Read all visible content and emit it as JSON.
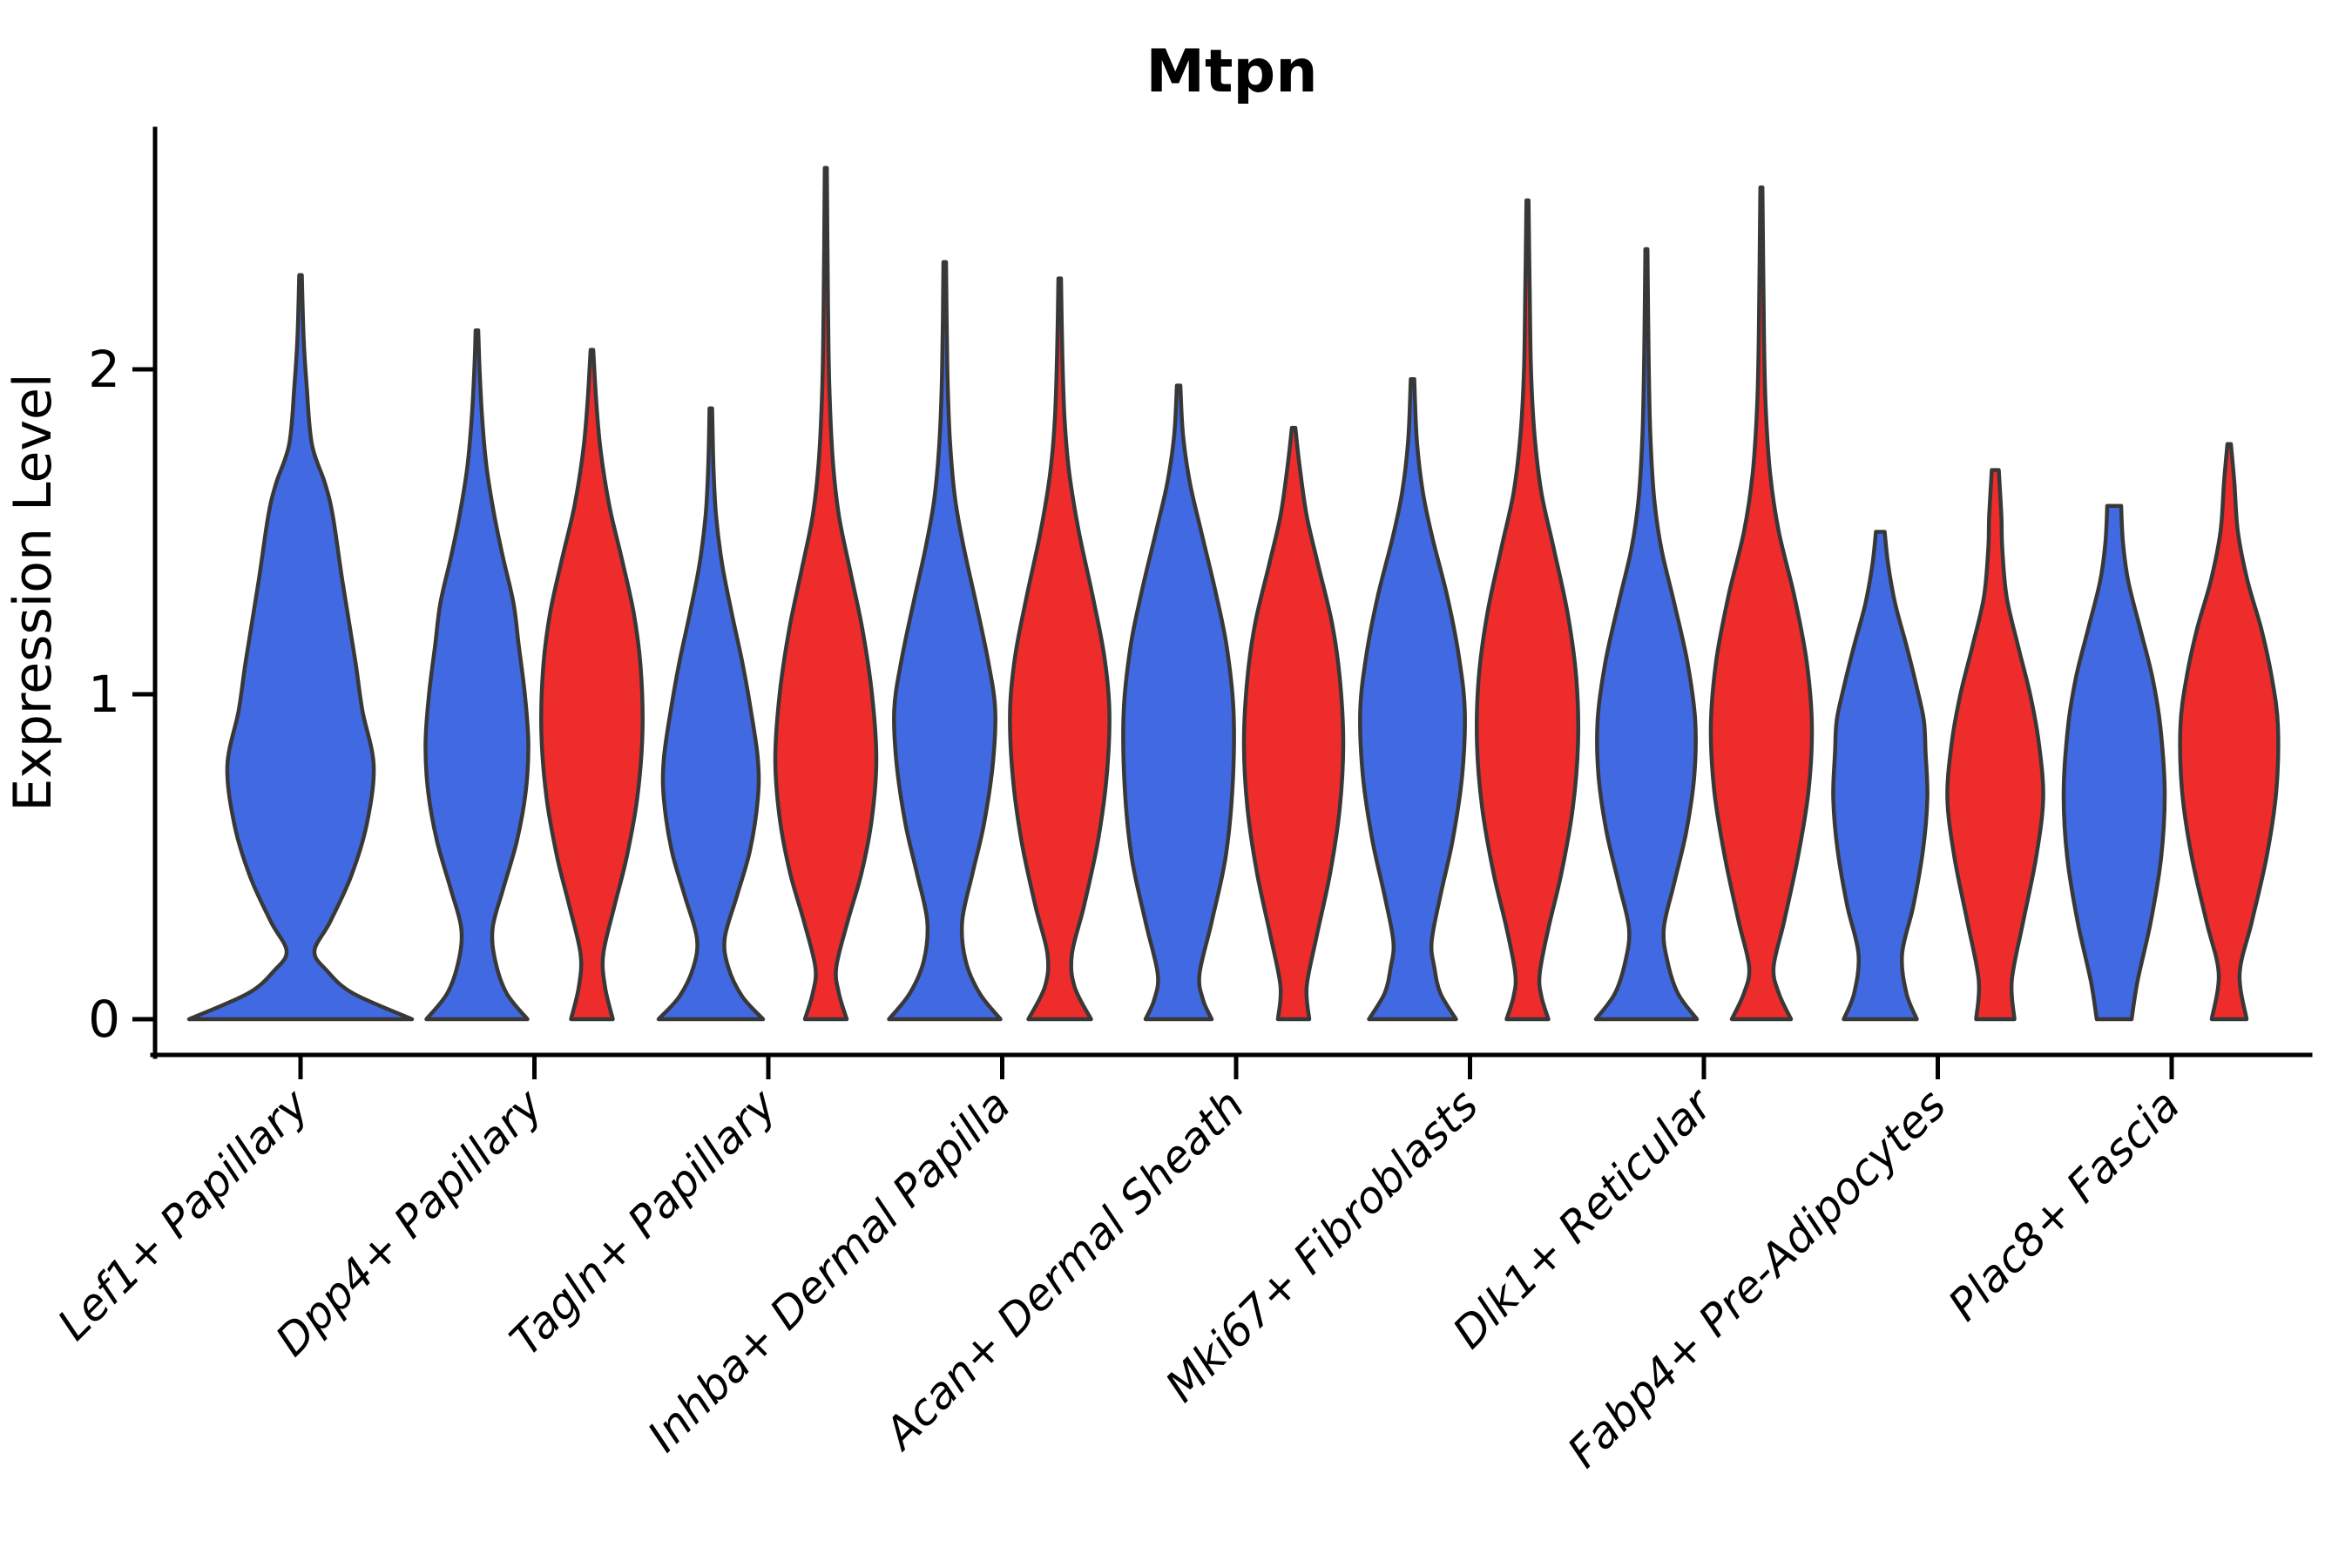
{
  "title": "Mtpn",
  "axis": {
    "ylabel": "Expression Level",
    "ytick_labels": [
      "0",
      "1",
      "2"
    ]
  },
  "colors": {
    "blue_fill": "#4169E1",
    "red_fill": "#EE2C2C",
    "violin_outline": "#383838",
    "axis_color": "#000000",
    "background": "#ffffff"
  },
  "chart_data": {
    "type": "violin",
    "title": "Mtpn",
    "xlabel": "",
    "ylabel": "Expression Level",
    "yticks": [
      0,
      1,
      2
    ],
    "ytick_labels": [
      "0",
      "1",
      "2"
    ],
    "ylim": [
      -0.12,
      2.75
    ],
    "grid": false,
    "legend": "none",
    "categories": [
      "Lef1+ Papillary",
      "Dpp4+ Papillary",
      "Tagln+ Papillary",
      "Inhba+ Dermal Papilla",
      "Acan+ Dermal Sheath",
      "Mki67+ Fibroblasts",
      "Dlk1+ Reticular",
      "Fabp4+ Pre-Adipocytes",
      "Plac8+ Fascia"
    ],
    "series": [
      {
        "name": "blue",
        "color": "#4169E1"
      },
      {
        "name": "red",
        "color": "#EE2C2C"
      }
    ],
    "violins": [
      {
        "category_index": 0,
        "series": "blue",
        "single": true,
        "max_expression": 2.29,
        "profile": [
          [
            0,
            128
          ],
          [
            0.08,
            60
          ],
          [
            0.15,
            30
          ],
          [
            0.21,
            16
          ],
          [
            0.3,
            34
          ],
          [
            0.44,
            58
          ],
          [
            0.6,
            76
          ],
          [
            0.78,
            84
          ],
          [
            0.95,
            71
          ],
          [
            1.1,
            63
          ],
          [
            1.35,
            48
          ],
          [
            1.55,
            37
          ],
          [
            1.65,
            28
          ],
          [
            1.77,
            13
          ],
          [
            1.95,
            7
          ],
          [
            2.1,
            3.5
          ],
          [
            2.29,
            1.5
          ]
        ]
      },
      {
        "category_index": 1,
        "series": "blue",
        "single": false,
        "max_expression": 2.12,
        "profile": [
          [
            0,
            58
          ],
          [
            0.08,
            34
          ],
          [
            0.18,
            21
          ],
          [
            0.28,
            18
          ],
          [
            0.4,
            30
          ],
          [
            0.55,
            46
          ],
          [
            0.7,
            56
          ],
          [
            0.85,
            59
          ],
          [
            1.0,
            55
          ],
          [
            1.15,
            48
          ],
          [
            1.28,
            42
          ],
          [
            1.42,
            30
          ],
          [
            1.55,
            20
          ],
          [
            1.7,
            11
          ],
          [
            1.85,
            6
          ],
          [
            2.0,
            3
          ],
          [
            2.12,
            1.5
          ]
        ]
      },
      {
        "category_index": 1,
        "series": "red",
        "single": false,
        "max_expression": 2.06,
        "profile": [
          [
            0,
            24
          ],
          [
            0.1,
            15
          ],
          [
            0.2,
            13
          ],
          [
            0.35,
            26
          ],
          [
            0.5,
            40
          ],
          [
            0.68,
            52
          ],
          [
            0.88,
            58
          ],
          [
            1.08,
            56
          ],
          [
            1.25,
            48
          ],
          [
            1.42,
            34
          ],
          [
            1.58,
            20
          ],
          [
            1.75,
            10
          ],
          [
            1.9,
            5
          ],
          [
            2.06,
            1.5
          ]
        ]
      },
      {
        "category_index": 2,
        "series": "blue",
        "single": false,
        "max_expression": 1.88,
        "profile": [
          [
            0,
            60
          ],
          [
            0.07,
            36
          ],
          [
            0.16,
            20
          ],
          [
            0.25,
            16
          ],
          [
            0.38,
            30
          ],
          [
            0.52,
            45
          ],
          [
            0.68,
            54
          ],
          [
            0.8,
            54
          ],
          [
            0.95,
            46
          ],
          [
            1.1,
            36
          ],
          [
            1.25,
            24
          ],
          [
            1.4,
            13
          ],
          [
            1.55,
            6
          ],
          [
            1.7,
            3
          ],
          [
            1.88,
            1.5
          ]
        ]
      },
      {
        "category_index": 2,
        "series": "red",
        "single": false,
        "max_expression": 2.62,
        "profile": [
          [
            0,
            24
          ],
          [
            0.08,
            15
          ],
          [
            0.16,
            12
          ],
          [
            0.3,
            25
          ],
          [
            0.45,
            41
          ],
          [
            0.62,
            53
          ],
          [
            0.8,
            58
          ],
          [
            1.0,
            53
          ],
          [
            1.2,
            42
          ],
          [
            1.38,
            28
          ],
          [
            1.55,
            15
          ],
          [
            1.72,
            8
          ],
          [
            1.95,
            4
          ],
          [
            2.2,
            2.5
          ],
          [
            2.62,
            1.2
          ]
        ]
      },
      {
        "category_index": 3,
        "series": "blue",
        "single": false,
        "max_expression": 2.33,
        "profile": [
          [
            0,
            64
          ],
          [
            0.08,
            40
          ],
          [
            0.18,
            24
          ],
          [
            0.3,
            20
          ],
          [
            0.45,
            32
          ],
          [
            0.6,
            45
          ],
          [
            0.78,
            55
          ],
          [
            0.95,
            58
          ],
          [
            1.1,
            50
          ],
          [
            1.28,
            36
          ],
          [
            1.45,
            22
          ],
          [
            1.6,
            12
          ],
          [
            1.78,
            6
          ],
          [
            2.0,
            3
          ],
          [
            2.33,
            1.5
          ]
        ]
      },
      {
        "category_index": 3,
        "series": "red",
        "single": false,
        "max_expression": 2.28,
        "profile": [
          [
            0,
            36
          ],
          [
            0.1,
            17
          ],
          [
            0.2,
            14
          ],
          [
            0.35,
            28
          ],
          [
            0.55,
            44
          ],
          [
            0.75,
            54
          ],
          [
            0.95,
            57
          ],
          [
            1.12,
            51
          ],
          [
            1.3,
            38
          ],
          [
            1.5,
            22
          ],
          [
            1.68,
            11
          ],
          [
            1.85,
            5.5
          ],
          [
            2.05,
            3
          ],
          [
            2.28,
            1.5
          ]
        ]
      },
      {
        "category_index": 4,
        "series": "blue",
        "single": false,
        "max_expression": 1.95,
        "profile": [
          [
            0,
            38
          ],
          [
            0.06,
            28
          ],
          [
            0.14,
            24
          ],
          [
            0.3,
            38
          ],
          [
            0.5,
            54
          ],
          [
            0.72,
            62
          ],
          [
            0.95,
            63
          ],
          [
            1.15,
            55
          ],
          [
            1.32,
            42
          ],
          [
            1.5,
            26
          ],
          [
            1.65,
            13
          ],
          [
            1.8,
            5
          ],
          [
            1.95,
            2
          ]
        ]
      },
      {
        "category_index": 4,
        "series": "red",
        "single": false,
        "max_expression": 1.82,
        "profile": [
          [
            0,
            18
          ],
          [
            0.1,
            15
          ],
          [
            0.25,
            26
          ],
          [
            0.45,
            42
          ],
          [
            0.65,
            53
          ],
          [
            0.85,
            57
          ],
          [
            1.05,
            53
          ],
          [
            1.22,
            44
          ],
          [
            1.4,
            28
          ],
          [
            1.55,
            15
          ],
          [
            1.7,
            7
          ],
          [
            1.82,
            2
          ]
        ]
      },
      {
        "category_index": 5,
        "series": "blue",
        "single": false,
        "max_expression": 1.97,
        "profile": [
          [
            0,
            50
          ],
          [
            0.08,
            32
          ],
          [
            0.16,
            25
          ],
          [
            0.24,
            22
          ],
          [
            0.38,
            32
          ],
          [
            0.55,
            46
          ],
          [
            0.75,
            57
          ],
          [
            0.95,
            60
          ],
          [
            1.12,
            53
          ],
          [
            1.3,
            40
          ],
          [
            1.48,
            23
          ],
          [
            1.62,
            12
          ],
          [
            1.78,
            5
          ],
          [
            1.97,
            2
          ]
        ]
      },
      {
        "category_index": 5,
        "series": "red",
        "single": false,
        "max_expression": 2.52,
        "profile": [
          [
            0,
            24
          ],
          [
            0.07,
            16
          ],
          [
            0.14,
            14
          ],
          [
            0.28,
            24
          ],
          [
            0.45,
            39
          ],
          [
            0.65,
            52
          ],
          [
            0.85,
            58
          ],
          [
            1.05,
            56
          ],
          [
            1.25,
            46
          ],
          [
            1.45,
            30
          ],
          [
            1.62,
            16
          ],
          [
            1.8,
            8
          ],
          [
            2.0,
            4
          ],
          [
            2.25,
            2.5
          ],
          [
            2.52,
            1.2
          ]
        ]
      },
      {
        "category_index": 6,
        "series": "blue",
        "single": false,
        "max_expression": 2.37,
        "profile": [
          [
            0,
            58
          ],
          [
            0.08,
            36
          ],
          [
            0.18,
            24
          ],
          [
            0.28,
            20
          ],
          [
            0.42,
            32
          ],
          [
            0.58,
            46
          ],
          [
            0.75,
            55
          ],
          [
            0.92,
            56
          ],
          [
            1.1,
            47
          ],
          [
            1.28,
            32
          ],
          [
            1.45,
            17
          ],
          [
            1.6,
            9
          ],
          [
            1.8,
            4.5
          ],
          [
            2.05,
            2.5
          ],
          [
            2.37,
            1.2
          ]
        ]
      },
      {
        "category_index": 6,
        "series": "red",
        "single": false,
        "max_expression": 2.56,
        "profile": [
          [
            0,
            34
          ],
          [
            0.08,
            20
          ],
          [
            0.16,
            14
          ],
          [
            0.3,
            26
          ],
          [
            0.5,
            42
          ],
          [
            0.7,
            54
          ],
          [
            0.9,
            58
          ],
          [
            1.1,
            52
          ],
          [
            1.3,
            38
          ],
          [
            1.5,
            20
          ],
          [
            1.68,
            10
          ],
          [
            1.88,
            5
          ],
          [
            2.1,
            3
          ],
          [
            2.56,
            1.2
          ]
        ]
      },
      {
        "category_index": 7,
        "series": "blue",
        "single": false,
        "max_expression": 1.5,
        "profile": [
          [
            0,
            42
          ],
          [
            0.08,
            30
          ],
          [
            0.2,
            25
          ],
          [
            0.35,
            38
          ],
          [
            0.52,
            49
          ],
          [
            0.68,
            54
          ],
          [
            0.82,
            52
          ],
          [
            0.92,
            50
          ],
          [
            1.02,
            42
          ],
          [
            1.15,
            30
          ],
          [
            1.28,
            17
          ],
          [
            1.4,
            9
          ],
          [
            1.5,
            5
          ]
        ]
      },
      {
        "category_index": 7,
        "series": "red",
        "single": false,
        "max_expression": 1.69,
        "profile": [
          [
            0,
            22
          ],
          [
            0.12,
            19
          ],
          [
            0.3,
            32
          ],
          [
            0.5,
            47
          ],
          [
            0.68,
            55
          ],
          [
            0.85,
            50
          ],
          [
            1.0,
            40
          ],
          [
            1.15,
            26
          ],
          [
            1.3,
            13
          ],
          [
            1.45,
            8
          ],
          [
            1.55,
            7
          ],
          [
            1.69,
            4
          ]
        ]
      },
      {
        "category_index": 8,
        "series": "blue",
        "single": false,
        "max_expression": 1.58,
        "profile": [
          [
            0,
            20
          ],
          [
            0.12,
            27
          ],
          [
            0.3,
            42
          ],
          [
            0.5,
            54
          ],
          [
            0.7,
            58
          ],
          [
            0.9,
            53
          ],
          [
            1.05,
            44
          ],
          [
            1.2,
            30
          ],
          [
            1.35,
            16
          ],
          [
            1.47,
            10
          ],
          [
            1.58,
            8
          ]
        ]
      },
      {
        "category_index": 8,
        "series": "red",
        "single": false,
        "max_expression": 1.77,
        "profile": [
          [
            0,
            20
          ],
          [
            0.14,
            12
          ],
          [
            0.3,
            26
          ],
          [
            0.5,
            43
          ],
          [
            0.7,
            54
          ],
          [
            0.9,
            56
          ],
          [
            1.05,
            49
          ],
          [
            1.2,
            37
          ],
          [
            1.35,
            21
          ],
          [
            1.5,
            10
          ],
          [
            1.65,
            6
          ],
          [
            1.77,
            2
          ]
        ]
      }
    ]
  }
}
